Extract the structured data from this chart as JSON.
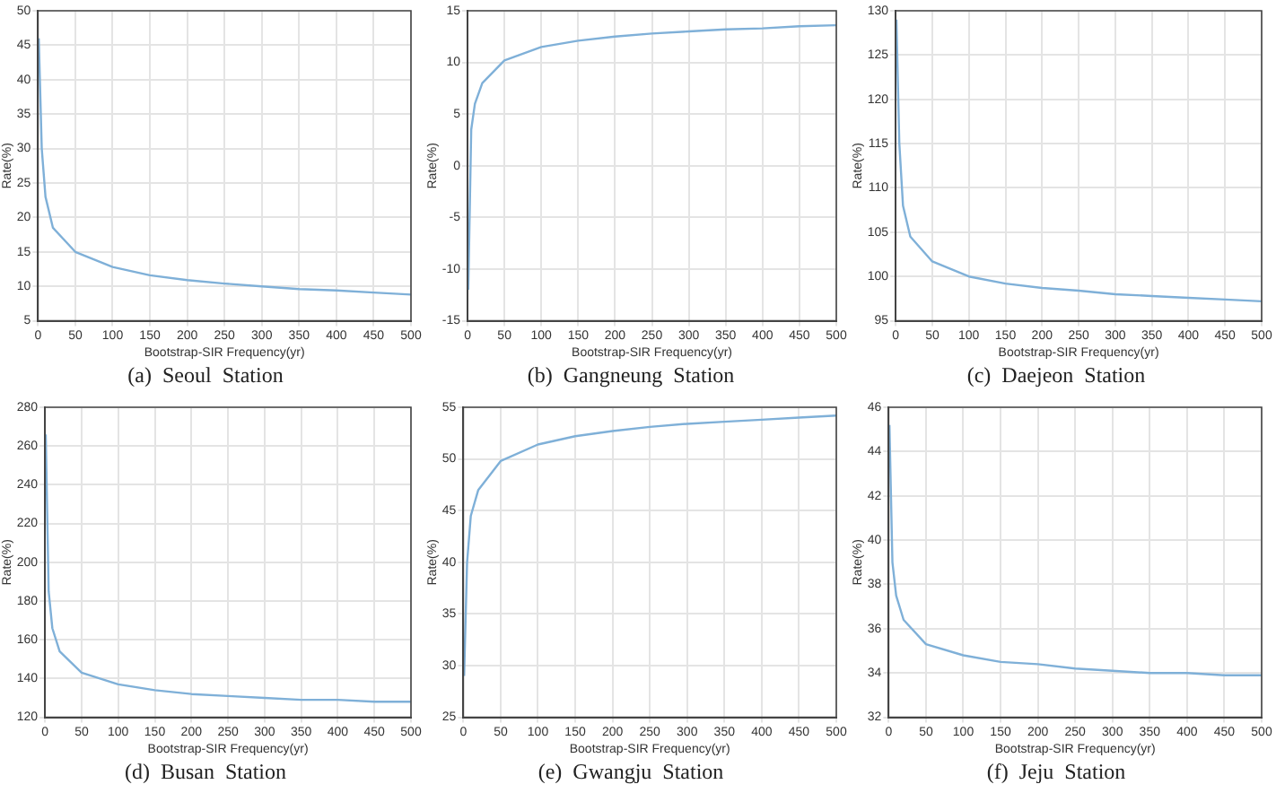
{
  "chart_data": [
    {
      "type": "line",
      "title": "(a)  Seoul  Station",
      "xlabel": "Bootstrap-SIR Frequency(yr)",
      "ylabel": "Rate(%)",
      "x": [
        1,
        5,
        10,
        20,
        50,
        100,
        150,
        200,
        250,
        300,
        350,
        400,
        450,
        500
      ],
      "values": [
        46,
        30,
        23,
        18.5,
        15,
        12.8,
        11.6,
        10.9,
        10.4,
        10,
        9.6,
        9.4,
        9.1,
        8.8
      ],
      "color": "#7fb0d8",
      "xlim": [
        0,
        500
      ],
      "xticks": [
        0,
        50,
        100,
        150,
        200,
        250,
        300,
        350,
        400,
        450,
        500
      ],
      "ylim": [
        5,
        50
      ],
      "yticks": [
        5,
        10,
        15,
        20,
        25,
        30,
        35,
        40,
        45,
        50
      ],
      "grid": true
    },
    {
      "type": "line",
      "title": "(b)  Gangneung  Station",
      "xlabel": "Bootstrap-SIR Frequency(yr)",
      "ylabel": "Rate(%)",
      "x": [
        1,
        5,
        10,
        20,
        50,
        100,
        150,
        200,
        250,
        300,
        350,
        400,
        450,
        500
      ],
      "values": [
        -12,
        3.5,
        6,
        8,
        10.2,
        11.5,
        12.1,
        12.5,
        12.8,
        13,
        13.2,
        13.3,
        13.5,
        13.6
      ],
      "color": "#7fb0d8",
      "xlim": [
        0,
        500
      ],
      "xticks": [
        0,
        50,
        100,
        150,
        200,
        250,
        300,
        350,
        400,
        450,
        500
      ],
      "ylim": [
        -15,
        15
      ],
      "yticks": [
        -15,
        -10,
        -5,
        0,
        5,
        10,
        15
      ],
      "grid": true
    },
    {
      "type": "line",
      "title": "(c)  Daejeon  Station",
      "xlabel": "Bootstrap-SIR Frequency(yr)",
      "ylabel": "Rate(%)",
      "x": [
        1,
        5,
        10,
        20,
        50,
        100,
        150,
        200,
        250,
        300,
        350,
        400,
        450,
        500
      ],
      "values": [
        129,
        115,
        108,
        104.5,
        101.7,
        100,
        99.2,
        98.7,
        98.4,
        98,
        97.8,
        97.6,
        97.4,
        97.2
      ],
      "color": "#7fb0d8",
      "xlim": [
        0,
        500
      ],
      "xticks": [
        0,
        50,
        100,
        150,
        200,
        250,
        300,
        350,
        400,
        450,
        500
      ],
      "ylim": [
        95,
        130
      ],
      "yticks": [
        95,
        100,
        105,
        110,
        115,
        120,
        125,
        130
      ],
      "grid": true
    },
    {
      "type": "line",
      "title": "(d)  Busan  Station",
      "xlabel": "Bootstrap-SIR Frequency(yr)",
      "ylabel": "Rate(%)",
      "x": [
        1,
        5,
        10,
        20,
        50,
        100,
        150,
        200,
        250,
        300,
        350,
        400,
        450,
        500
      ],
      "values": [
        266,
        185,
        166,
        154,
        143,
        137,
        134,
        132,
        131,
        130,
        129,
        129,
        128,
        128
      ],
      "color": "#7fb0d8",
      "xlim": [
        0,
        500
      ],
      "xticks": [
        0,
        50,
        100,
        150,
        200,
        250,
        300,
        350,
        400,
        450,
        500
      ],
      "ylim": [
        120,
        280
      ],
      "yticks": [
        120,
        140,
        160,
        180,
        200,
        220,
        240,
        260,
        280
      ],
      "grid": true
    },
    {
      "type": "line",
      "title": "(e)  Gwangju  Station",
      "xlabel": "Bootstrap-SIR Frequency(yr)",
      "ylabel": "Rate(%)",
      "x": [
        1,
        5,
        10,
        20,
        50,
        100,
        150,
        200,
        250,
        300,
        350,
        400,
        450,
        500
      ],
      "values": [
        29,
        40,
        44.5,
        47,
        49.8,
        51.4,
        52.2,
        52.7,
        53.1,
        53.4,
        53.6,
        53.8,
        54,
        54.2
      ],
      "color": "#7fb0d8",
      "xlim": [
        0,
        500
      ],
      "xticks": [
        0,
        50,
        100,
        150,
        200,
        250,
        300,
        350,
        400,
        450,
        500
      ],
      "ylim": [
        25,
        55
      ],
      "yticks": [
        25,
        30,
        35,
        40,
        45,
        50,
        55
      ],
      "grid": true
    },
    {
      "type": "line",
      "title": "(f)  Jeju  Station",
      "xlabel": "Bootstrap-SIR Frequency(yr)",
      "ylabel": "Rate(%)",
      "x": [
        1,
        5,
        10,
        20,
        50,
        100,
        150,
        200,
        250,
        300,
        350,
        400,
        450,
        500
      ],
      "values": [
        45.2,
        39,
        37.5,
        36.4,
        35.3,
        34.8,
        34.5,
        34.4,
        34.2,
        34.1,
        34,
        34,
        33.9,
        33.9
      ],
      "color": "#7fb0d8",
      "xlim": [
        0,
        500
      ],
      "xticks": [
        0,
        50,
        100,
        150,
        200,
        250,
        300,
        350,
        400,
        450,
        500
      ],
      "ylim": [
        32,
        46
      ],
      "yticks": [
        32,
        34,
        36,
        38,
        40,
        42,
        44,
        46
      ],
      "grid": true
    }
  ]
}
